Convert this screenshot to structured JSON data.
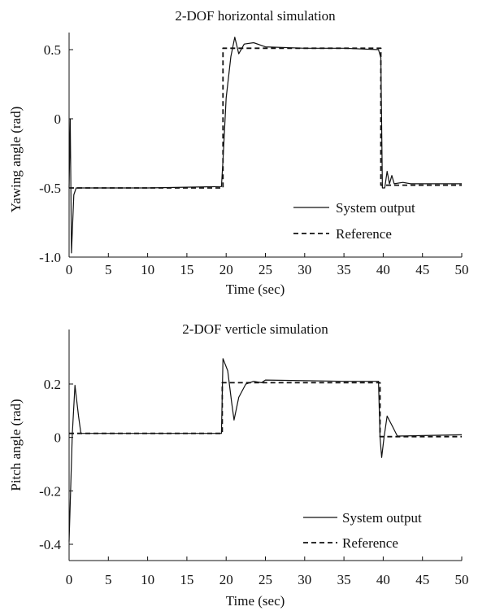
{
  "chart_data": [
    {
      "type": "line",
      "title": "2-DOF horizontal simulation",
      "xlabel": "Time (sec)",
      "ylabel": "Yawing angle (rad)",
      "xlim": [
        0,
        50
      ],
      "ylim": [
        -1.0,
        0.7
      ],
      "xticks": [
        0,
        5,
        10,
        15,
        20,
        25,
        30,
        35,
        40,
        45,
        50
      ],
      "xtick_labels": [
        "0",
        "5",
        "10",
        "15",
        "20",
        "25",
        "30",
        "35",
        "40",
        "45",
        "50"
      ],
      "yticks": [
        0.5,
        0,
        -0.5,
        -1.0
      ],
      "ytick_labels": [
        "0.5",
        "0",
        "-0.5",
        "-1.0"
      ],
      "grid": false,
      "legend_position": "lower-right",
      "series": [
        {
          "name": "System output",
          "style": "solid",
          "color": "#111111",
          "points": [
            [
              0,
              -0.5
            ],
            [
              0.15,
              0.0
            ],
            [
              0.3,
              -0.97
            ],
            [
              0.6,
              -0.55
            ],
            [
              0.9,
              -0.5
            ],
            [
              10,
              -0.5
            ],
            [
              19.4,
              -0.49
            ],
            [
              19.6,
              -0.3
            ],
            [
              20.0,
              0.15
            ],
            [
              20.6,
              0.45
            ],
            [
              21.1,
              0.59
            ],
            [
              21.6,
              0.47
            ],
            [
              22.3,
              0.54
            ],
            [
              23.5,
              0.55
            ],
            [
              25,
              0.52
            ],
            [
              30,
              0.51
            ],
            [
              35,
              0.51
            ],
            [
              39.4,
              0.5
            ],
            [
              39.7,
              0.44
            ],
            [
              39.9,
              -0.5
            ],
            [
              40.2,
              -0.5
            ],
            [
              40.5,
              -0.38
            ],
            [
              40.8,
              -0.47
            ],
            [
              41.1,
              -0.41
            ],
            [
              41.4,
              -0.47
            ],
            [
              42.5,
              -0.46
            ],
            [
              43.5,
              -0.47
            ],
            [
              50,
              -0.47
            ]
          ]
        },
        {
          "name": "Reference",
          "style": "dashed",
          "color": "#111111",
          "points": [
            [
              0,
              -0.5
            ],
            [
              19.6,
              -0.5
            ],
            [
              19.6,
              0.51
            ],
            [
              39.7,
              0.51
            ],
            [
              39.7,
              -0.48
            ],
            [
              50,
              -0.48
            ]
          ]
        }
      ]
    },
    {
      "type": "line",
      "title": "2-DOF verticle simulation",
      "xlabel": "Time (sec)",
      "ylabel": "Pitch angle (rad)",
      "xlim": [
        0,
        50
      ],
      "ylim": [
        -0.52,
        0.4
      ],
      "xticks": [
        0,
        5,
        10,
        15,
        20,
        25,
        30,
        35,
        40,
        45,
        50
      ],
      "xtick_labels": [
        "0",
        "5",
        "10",
        "15",
        "20",
        "25",
        "30",
        "35",
        "40",
        "45",
        "50"
      ],
      "yticks": [
        0.2,
        0,
        -0.2,
        -0.4
      ],
      "ytick_labels": [
        "0.2",
        "0",
        "-0.2",
        "-0.4"
      ],
      "grid": false,
      "legend_position": "lower-right",
      "series": [
        {
          "name": "System output",
          "style": "solid",
          "color": "#111111",
          "points": [
            [
              0,
              -0.39
            ],
            [
              0.4,
              0.01
            ],
            [
              0.75,
              0.195
            ],
            [
              1.2,
              0.08
            ],
            [
              1.5,
              0.015
            ],
            [
              10,
              0.015
            ],
            [
              19.4,
              0.015
            ],
            [
              19.6,
              0.295
            ],
            [
              20.2,
              0.25
            ],
            [
              20.7,
              0.13
            ],
            [
              21.0,
              0.065
            ],
            [
              21.6,
              0.15
            ],
            [
              22.5,
              0.2
            ],
            [
              23.5,
              0.21
            ],
            [
              24.5,
              0.205
            ],
            [
              25,
              0.215
            ],
            [
              35,
              0.21
            ],
            [
              39.4,
              0.21
            ],
            [
              39.6,
              0.0
            ],
            [
              39.8,
              -0.075
            ],
            [
              40.1,
              0.0
            ],
            [
              40.5,
              0.08
            ],
            [
              41.2,
              0.04
            ],
            [
              41.8,
              0.005
            ],
            [
              50,
              0.01
            ]
          ]
        },
        {
          "name": "Reference",
          "style": "dashed",
          "color": "#111111",
          "points": [
            [
              0,
              0.015
            ],
            [
              19.5,
              0.015
            ],
            [
              19.5,
              0.205
            ],
            [
              39.6,
              0.205
            ],
            [
              39.6,
              0.003
            ],
            [
              50,
              0.003
            ]
          ]
        }
      ]
    }
  ]
}
